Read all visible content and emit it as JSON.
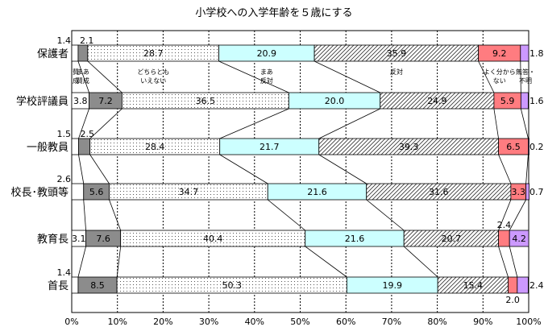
{
  "chart_data": {
    "type": "bar",
    "stacked": "percent",
    "orientation": "horizontal",
    "title": "小学校への入学年齢を５歳にする",
    "xlim": [
      0,
      100
    ],
    "xticks": [
      "0%",
      "10%",
      "20%",
      "30%",
      "40%",
      "50%",
      "60%",
      "70%",
      "80%",
      "90%",
      "100%"
    ],
    "grid": true,
    "categories": [
      "保護者",
      "学校評議員",
      "一般教員",
      "校長･教頭等",
      "教育長",
      "首長"
    ],
    "series": [
      {
        "name": "賛成",
        "color": "#ffffff",
        "values": [
          1.4,
          3.8,
          1.5,
          2.6,
          3.1,
          1.4
        ]
      },
      {
        "name": "まあ賛成",
        "color": "#8c8c8c",
        "values": [
          2.1,
          7.2,
          2.5,
          5.6,
          7.6,
          8.5
        ]
      },
      {
        "name": "どちらともいえない",
        "color": "#ffffff",
        "pattern": "dots",
        "values": [
          28.7,
          36.5,
          28.4,
          34.7,
          40.4,
          50.3
        ]
      },
      {
        "name": "まあ反対",
        "color": "#ccffff",
        "values": [
          20.9,
          20.0,
          21.7,
          21.6,
          21.6,
          19.9
        ]
      },
      {
        "name": "反対",
        "color": "#ffffff",
        "pattern": "hatch",
        "values": [
          35.9,
          24.9,
          39.3,
          31.6,
          20.7,
          15.4
        ]
      },
      {
        "name": "よく分からない",
        "color": "#ff7c80",
        "values": [
          9.2,
          5.9,
          6.5,
          3.3,
          2.4,
          2.0
        ]
      },
      {
        "name": "無答･不明",
        "color": "#cc99ff",
        "values": [
          1.8,
          1.6,
          0.2,
          0.7,
          4.2,
          2.4
        ]
      }
    ],
    "data_labels": [
      [
        "1.4",
        "2.1",
        "28.7",
        "20.9",
        "35.9",
        "9.2",
        "1.8"
      ],
      [
        "3.8",
        "7.2",
        "36.5",
        "20.0",
        "24.9",
        "5.9",
        "1.6"
      ],
      [
        "1.5",
        "2.5",
        "28.4",
        "21.7",
        "39.3",
        "6.5",
        "0.2"
      ],
      [
        "2.6",
        "5.6",
        "34.7",
        "21.6",
        "31.6",
        "3.3",
        "0.7"
      ],
      [
        "3.1",
        "7.6",
        "40.4",
        "21.6",
        "20.7",
        "2.4",
        "4.2"
      ],
      [
        "1.4",
        "8.5",
        "50.3",
        "19.9",
        "15.4",
        "2.0",
        "2.4"
      ]
    ],
    "legend_labels": [
      {
        "series": 0,
        "lines": [
          "賛",
          "成"
        ]
      },
      {
        "series": 1,
        "lines": [
          "まあ",
          "賛成"
        ]
      },
      {
        "series": 2,
        "lines": [
          "どちらとも",
          "いえない"
        ]
      },
      {
        "series": 3,
        "lines": [
          "まあ",
          "反対"
        ]
      },
      {
        "series": 4,
        "lines": [
          "反対"
        ]
      },
      {
        "series": 5,
        "lines": [
          "よく分から",
          "ない"
        ]
      },
      {
        "series": 6,
        "lines": [
          "無答・",
          "不明"
        ]
      }
    ]
  }
}
